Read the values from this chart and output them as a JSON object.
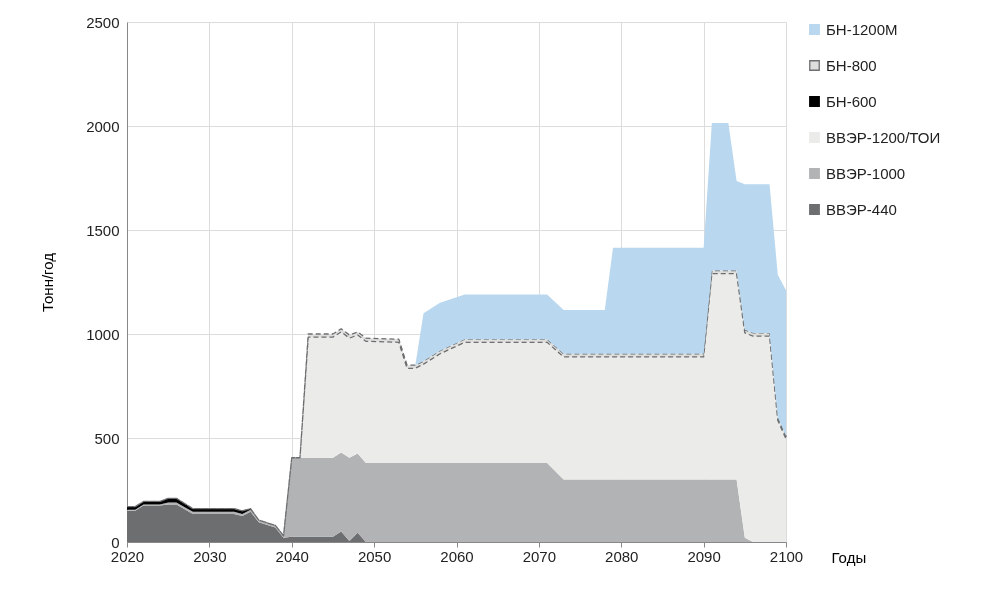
{
  "chart_data": {
    "type": "area",
    "stacked": true,
    "xlabel": "Годы",
    "ylabel": "Тонн/год",
    "x": [
      2020,
      2021,
      2022,
      2024,
      2025,
      2026,
      2028,
      2033,
      2034,
      2035,
      2036,
      2038,
      2039,
      2040,
      2041,
      2042,
      2045,
      2046,
      2047,
      2048,
      2049,
      2053,
      2054,
      2055,
      2056,
      2058,
      2061,
      2071,
      2073,
      2078,
      2079,
      2090,
      2091,
      2093,
      2094,
      2095,
      2096,
      2098,
      2099,
      2100
    ],
    "series": [
      {
        "name": "ВВЭР-440",
        "color": "#6d6e70",
        "values": [
          150,
          150,
          175,
          175,
          180,
          180,
          135,
          135,
          125,
          145,
          95,
          70,
          20,
          25,
          25,
          25,
          25,
          50,
          5,
          45,
          0,
          0,
          0,
          0,
          0,
          0,
          0,
          0,
          0,
          0,
          0,
          0,
          0,
          0,
          0,
          0,
          0,
          0,
          0,
          0
        ]
      },
      {
        "name": "ВВЭР-1000",
        "color": "#b1b3b4",
        "values": [
          5,
          5,
          5,
          5,
          10,
          10,
          10,
          10,
          10,
          10,
          10,
          10,
          10,
          380,
          380,
          380,
          380,
          380,
          400,
          380,
          380,
          380,
          380,
          380,
          380,
          380,
          380,
          380,
          300,
          300,
          300,
          300,
          300,
          300,
          300,
          20,
          0,
          0,
          0,
          0
        ]
      },
      {
        "name": "ВВЭР-1200/ТОИ",
        "color": "#ebebea",
        "values": [
          0,
          0,
          0,
          0,
          0,
          0,
          0,
          0,
          0,
          0,
          0,
          0,
          0,
          0,
          0,
          580,
          580,
          580,
          575,
          570,
          585,
          580,
          455,
          455,
          475,
          525,
          580,
          580,
          590,
          590,
          590,
          590,
          990,
          990,
          990,
          985,
          990,
          990,
          585,
          495
        ]
      },
      {
        "name": "БН-600",
        "color": "#000000",
        "values": [
          15,
          15,
          15,
          15,
          20,
          20,
          15,
          15,
          15,
          5,
          0,
          0,
          0,
          0,
          0,
          0,
          0,
          0,
          0,
          0,
          0,
          0,
          0,
          0,
          0,
          0,
          0,
          0,
          0,
          0,
          0,
          0,
          0,
          0,
          0,
          0,
          0,
          0,
          0,
          0
        ]
      },
      {
        "name": "БН-800",
        "color": "#dededd",
        "line_style": "dashed",
        "values": [
          0,
          0,
          0,
          0,
          0,
          0,
          0,
          0,
          0,
          0,
          0,
          0,
          0,
          0,
          0,
          15,
          15,
          15,
          15,
          15,
          15,
          15,
          15,
          15,
          15,
          15,
          15,
          15,
          15,
          15,
          15,
          15,
          15,
          15,
          15,
          15,
          15,
          15,
          15,
          15
        ]
      },
      {
        "name": "БН-1200М",
        "color": "#b9d7ee",
        "values": [
          0,
          0,
          0,
          0,
          0,
          0,
          0,
          0,
          0,
          0,
          0,
          0,
          0,
          0,
          0,
          0,
          0,
          0,
          0,
          0,
          0,
          0,
          0,
          0,
          230,
          230,
          215,
          215,
          210,
          210,
          510,
          510,
          710,
          710,
          430,
          700,
          715,
          715,
          685,
          700
        ]
      }
    ],
    "xlim": [
      2020,
      2100
    ],
    "xticks": [
      2020,
      2030,
      2040,
      2050,
      2060,
      2070,
      2080,
      2090,
      2100
    ],
    "ylim": [
      0,
      2500
    ],
    "yticks": [
      0,
      500,
      1000,
      1500,
      2000,
      2500
    ],
    "grid": true,
    "legend": "right"
  }
}
